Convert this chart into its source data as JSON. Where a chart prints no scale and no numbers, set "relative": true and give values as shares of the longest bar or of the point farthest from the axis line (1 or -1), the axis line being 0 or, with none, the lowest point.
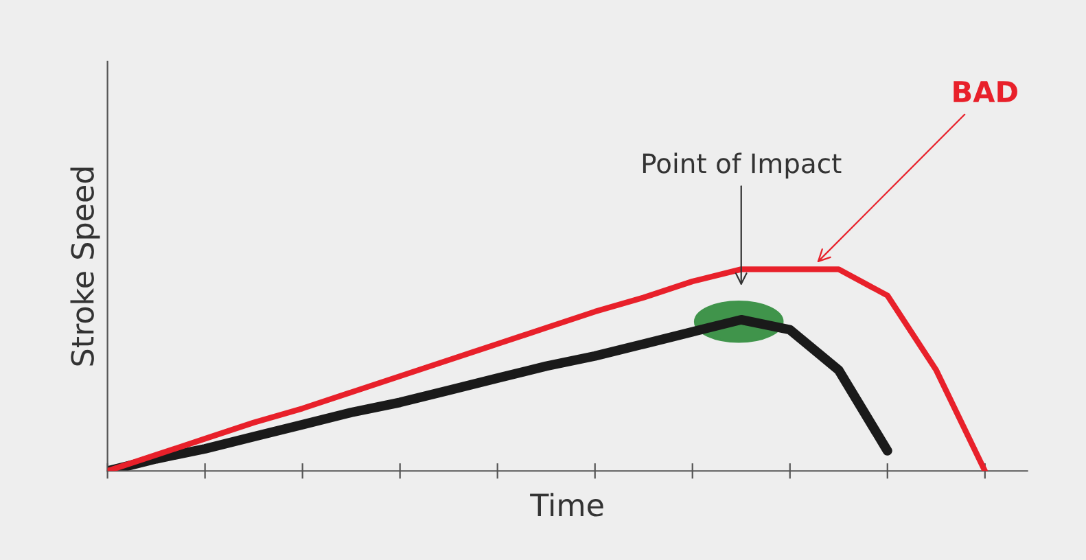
{
  "chart_data": {
    "type": "line",
    "relative": true,
    "xlabel": "Time",
    "ylabel": "Stroke Speed",
    "categories": [
      null,
      null,
      null,
      null,
      null,
      null,
      null,
      null,
      null,
      null,
      null,
      null,
      null,
      null,
      null,
      null,
      null,
      null,
      null
    ],
    "series": [
      {
        "color": "#e8202a",
        "values": [
          0,
          0.08,
          0.16,
          0.24,
          0.31,
          0.39,
          0.47,
          0.55,
          0.63,
          0.71,
          0.79,
          0.86,
          0.94,
          1.0,
          1.0,
          1.0,
          0.87,
          0.5,
          0
        ]
      },
      {
        "color": "#1a1a1a",
        "values": [
          0,
          0.06,
          0.11,
          0.17,
          0.23,
          0.29,
          0.34,
          0.4,
          0.46,
          0.52,
          0.57,
          0.63,
          0.69,
          0.75,
          0.7,
          0.5,
          0.1,
          null,
          null
        ]
      }
    ],
    "annotations": [
      "Point of Impact",
      "BAD"
    ],
    "grid": false,
    "legend": false,
    "marker": "none",
    "line_style": "solid"
  }
}
